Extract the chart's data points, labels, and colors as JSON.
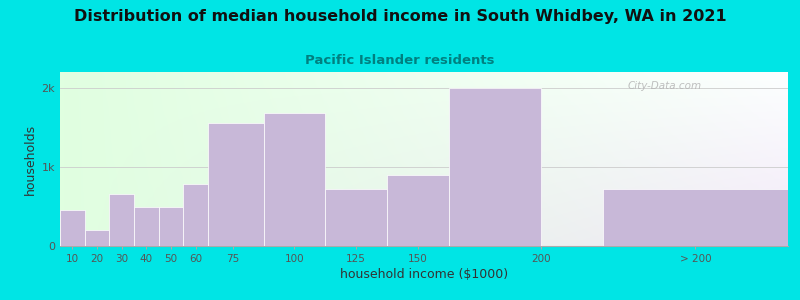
{
  "title": "Distribution of median household income in South Whidbey, WA in 2021",
  "subtitle": "Pacific Islander residents",
  "xlabel": "household income ($1000)",
  "ylabel": "households",
  "background_outer": "#00e5e5",
  "bar_color": "#c8b8d8",
  "categories": [
    "10",
    "20",
    "30",
    "40",
    "50",
    "60",
    "75",
    "100",
    "125",
    "150",
    "200",
    "> 200"
  ],
  "values": [
    460,
    200,
    660,
    490,
    490,
    780,
    1560,
    1680,
    720,
    900,
    2000,
    720
  ],
  "bar_lefts": [
    5,
    15,
    25,
    35,
    45,
    55,
    65,
    87.5,
    112.5,
    137.5,
    162.5,
    225
  ],
  "bar_widths": [
    10,
    10,
    10,
    10,
    10,
    10,
    22.5,
    25,
    25,
    25,
    37.5,
    75
  ],
  "ylim": [
    0,
    2200
  ],
  "yticks": [
    0,
    1000,
    2000
  ],
  "ytick_labels": [
    "0",
    "1k",
    "2k"
  ],
  "xlim": [
    5,
    300
  ],
  "xtick_positions": [
    10,
    20,
    30,
    40,
    50,
    60,
    75,
    100,
    125,
    150,
    200,
    262.5
  ],
  "xtick_labels": [
    "10",
    "20",
    "30",
    "40",
    "50",
    "60",
    "75",
    "100",
    "125",
    "150",
    "200",
    "> 200"
  ],
  "title_fontsize": 11.5,
  "subtitle_fontsize": 9.5,
  "subtitle_color": "#008080",
  "axis_label_fontsize": 9,
  "watermark_text": "City-Data.com"
}
